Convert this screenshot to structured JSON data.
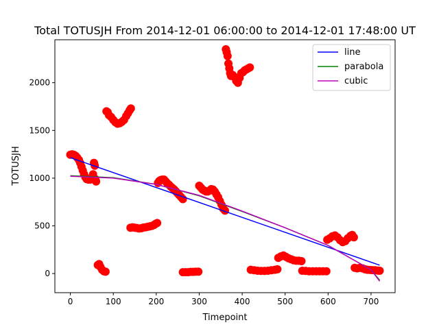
{
  "chart_data": {
    "type": "scatter",
    "title": "Total TOTUSJH From 2014-12-01 06:00:00 to 2014-12-01 17:48:00 UT",
    "xlabel": "Timepoint",
    "ylabel": "TOTUSJH",
    "xlim": [
      -36,
      756
    ],
    "ylim": [
      -200,
      2450
    ],
    "xticks": [
      0,
      100,
      200,
      300,
      400,
      500,
      600,
      700
    ],
    "yticks": [
      0,
      500,
      1000,
      1500,
      2000
    ],
    "grid": false,
    "legend_position": "top-right",
    "scatter": {
      "color": "#ff0000",
      "points": [
        [
          0,
          1245
        ],
        [
          4,
          1250
        ],
        [
          8,
          1245
        ],
        [
          12,
          1235
        ],
        [
          16,
          1215
        ],
        [
          20,
          1190
        ],
        [
          23,
          1160
        ],
        [
          26,
          1120
        ],
        [
          29,
          1080
        ],
        [
          32,
          1040
        ],
        [
          35,
          1010
        ],
        [
          38,
          990
        ],
        [
          42,
          985
        ],
        [
          46,
          985
        ],
        [
          50,
          1000
        ],
        [
          53,
          1040
        ],
        [
          55,
          1160
        ],
        [
          57,
          1130
        ],
        [
          58,
          990
        ],
        [
          60,
          965
        ],
        [
          64,
          90
        ],
        [
          67,
          100
        ],
        [
          70,
          70
        ],
        [
          74,
          40
        ],
        [
          78,
          25
        ],
        [
          82,
          20
        ],
        [
          84,
          1700
        ],
        [
          87,
          1690
        ],
        [
          90,
          1660
        ],
        [
          95,
          1640
        ],
        [
          100,
          1610
        ],
        [
          105,
          1585
        ],
        [
          110,
          1570
        ],
        [
          115,
          1575
        ],
        [
          120,
          1590
        ],
        [
          125,
          1610
        ],
        [
          130,
          1650
        ],
        [
          134,
          1680
        ],
        [
          138,
          1710
        ],
        [
          141,
          1730
        ],
        [
          140,
          480
        ],
        [
          145,
          485
        ],
        [
          150,
          480
        ],
        [
          155,
          478
        ],
        [
          160,
          472
        ],
        [
          165,
          475
        ],
        [
          170,
          482
        ],
        [
          175,
          485
        ],
        [
          180,
          490
        ],
        [
          185,
          495
        ],
        [
          190,
          500
        ],
        [
          195,
          510
        ],
        [
          198,
          520
        ],
        [
          202,
          530
        ],
        [
          204,
          950
        ],
        [
          207,
          970
        ],
        [
          210,
          980
        ],
        [
          214,
          985
        ],
        [
          218,
          985
        ],
        [
          222,
          965
        ],
        [
          226,
          945
        ],
        [
          230,
          930
        ],
        [
          234,
          910
        ],
        [
          238,
          895
        ],
        [
          242,
          880
        ],
        [
          246,
          860
        ],
        [
          250,
          840
        ],
        [
          254,
          820
        ],
        [
          258,
          800
        ],
        [
          262,
          780
        ],
        [
          262,
          15
        ],
        [
          268,
          15
        ],
        [
          274,
          15
        ],
        [
          280,
          18
        ],
        [
          286,
          18
        ],
        [
          292,
          20
        ],
        [
          298,
          20
        ],
        [
          300,
          920
        ],
        [
          304,
          900
        ],
        [
          308,
          880
        ],
        [
          312,
          870
        ],
        [
          316,
          860
        ],
        [
          320,
          860
        ],
        [
          324,
          870
        ],
        [
          328,
          885
        ],
        [
          332,
          880
        ],
        [
          336,
          860
        ],
        [
          340,
          830
        ],
        [
          344,
          800
        ],
        [
          348,
          760
        ],
        [
          352,
          720
        ],
        [
          356,
          680
        ],
        [
          360,
          660
        ],
        [
          362,
          2350
        ],
        [
          364,
          2320
        ],
        [
          366,
          2280
        ],
        [
          368,
          2200
        ],
        [
          370,
          2150
        ],
        [
          372,
          2100
        ],
        [
          374,
          2070
        ],
        [
          378,
          2080
        ],
        [
          382,
          2060
        ],
        [
          386,
          2020
        ],
        [
          390,
          2000
        ],
        [
          394,
          2050
        ],
        [
          398,
          2100
        ],
        [
          402,
          2110
        ],
        [
          406,
          2130
        ],
        [
          410,
          2140
        ],
        [
          414,
          2150
        ],
        [
          418,
          2160
        ],
        [
          420,
          40
        ],
        [
          428,
          35
        ],
        [
          436,
          30
        ],
        [
          444,
          28
        ],
        [
          452,
          28
        ],
        [
          460,
          30
        ],
        [
          468,
          35
        ],
        [
          476,
          40
        ],
        [
          482,
          45
        ],
        [
          484,
          165
        ],
        [
          490,
          180
        ],
        [
          496,
          190
        ],
        [
          502,
          175
        ],
        [
          508,
          160
        ],
        [
          514,
          150
        ],
        [
          520,
          140
        ],
        [
          526,
          135
        ],
        [
          532,
          135
        ],
        [
          538,
          130
        ],
        [
          540,
          30
        ],
        [
          548,
          28
        ],
        [
          556,
          25
        ],
        [
          564,
          25
        ],
        [
          572,
          25
        ],
        [
          580,
          25
        ],
        [
          588,
          25
        ],
        [
          596,
          25
        ],
        [
          598,
          355
        ],
        [
          604,
          370
        ],
        [
          610,
          390
        ],
        [
          616,
          400
        ],
        [
          622,
          380
        ],
        [
          628,
          350
        ],
        [
          634,
          330
        ],
        [
          640,
          340
        ],
        [
          646,
          370
        ],
        [
          652,
          395
        ],
        [
          656,
          405
        ],
        [
          660,
          380
        ],
        [
          662,
          60
        ],
        [
          668,
          55
        ],
        [
          674,
          60
        ],
        [
          680,
          55
        ],
        [
          686,
          45
        ],
        [
          692,
          40
        ],
        [
          698,
          38
        ],
        [
          704,
          36
        ],
        [
          710,
          35
        ],
        [
          716,
          32
        ],
        [
          720,
          30
        ]
      ]
    },
    "series": [
      {
        "name": "line",
        "color": "#0000ff",
        "x": [
          0,
          720
        ],
        "values": [
          1215,
          88
        ]
      },
      {
        "name": "parabola",
        "color": "#008000",
        "x": [
          0,
          100,
          200,
          300,
          400,
          500,
          600,
          700,
          720
        ],
        "values": [
          1025,
          1005,
          935,
          815,
          650,
          480,
          295,
          40,
          -70
        ]
      },
      {
        "name": "cubic",
        "color": "#bf00bf",
        "x": [
          0,
          100,
          200,
          300,
          400,
          500,
          600,
          700,
          720
        ],
        "values": [
          1020,
          1000,
          935,
          820,
          655,
          480,
          295,
          40,
          -80
        ]
      }
    ]
  }
}
